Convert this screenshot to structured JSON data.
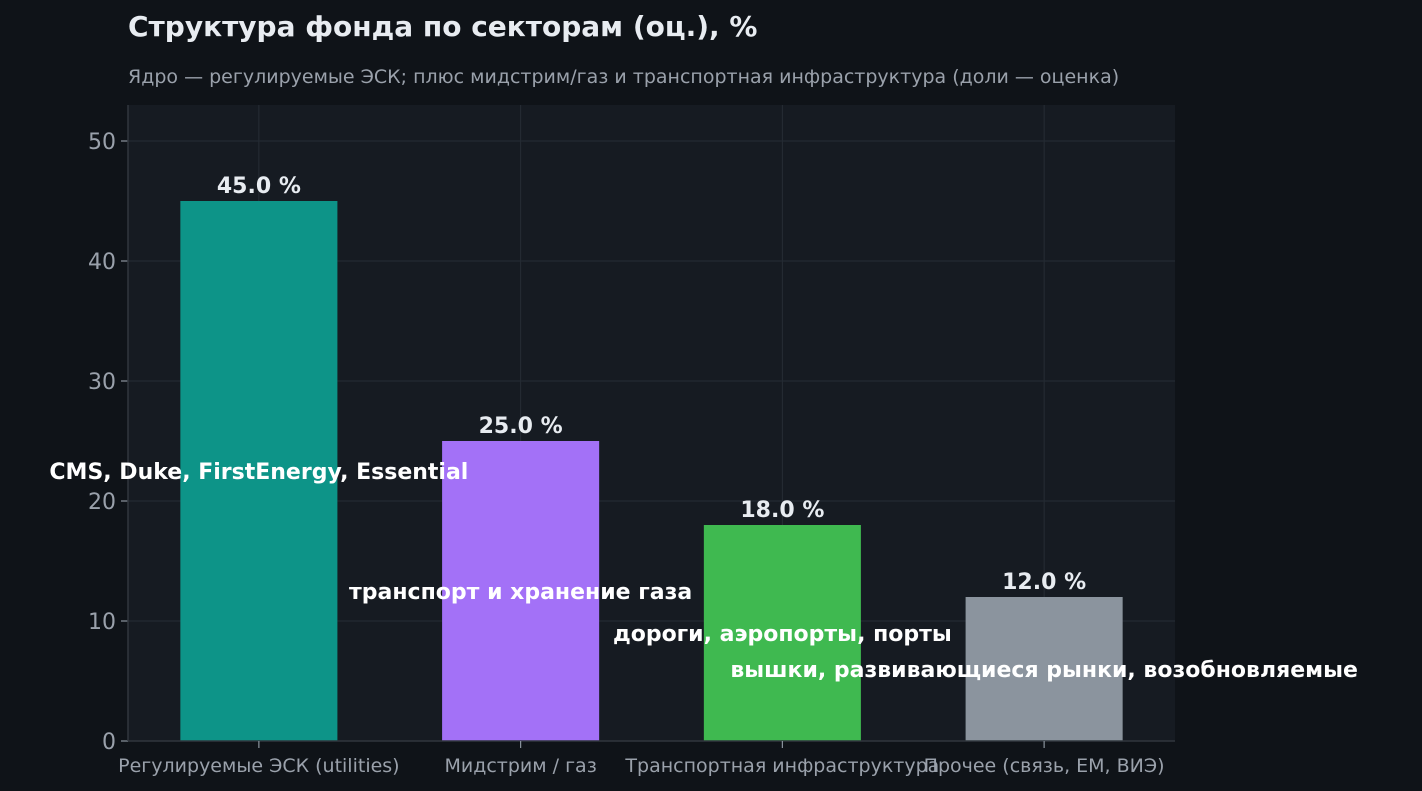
{
  "chart_data": {
    "type": "bar",
    "title": "Структура фонда по секторам (оц.), %",
    "subtitle": "Ядро — регулируемые ЭСК; плюс мидстрим/газ и транспортная инфраструктура (доли — оценка)",
    "xlabel": "",
    "ylabel": "",
    "categories": [
      "Регулируемые ЭСК (utilities)",
      "Мидстрим / газ",
      "Транспортная инфраструктура",
      "Прочее (связь, EM, ВИЭ)"
    ],
    "values": [
      45.0,
      25.0,
      18.0,
      12.0
    ],
    "value_labels": [
      "45.0 %",
      "25.0 %",
      "18.0 %",
      "12.0 %"
    ],
    "annotations": [
      {
        "text": "CMS, Duke, FirstEnergy, Essential",
        "category": 0,
        "y": 22.5
      },
      {
        "text": "транспорт и хранение газа",
        "category": 1,
        "y": 12.5
      },
      {
        "text": "дороги, аэропорты, порты",
        "category": 2,
        "y": 9.0
      },
      {
        "text": "вышки, развивающиеся рынки, возобновляемые",
        "category": 3,
        "y": 6.0
      }
    ],
    "colors": [
      "#0d9488",
      "#a371f7",
      "#3fb950",
      "#8b949e"
    ],
    "ylim": [
      0,
      53
    ],
    "yticks": [
      0,
      10,
      20,
      30,
      40,
      50
    ],
    "grid": true,
    "legend": "none"
  }
}
